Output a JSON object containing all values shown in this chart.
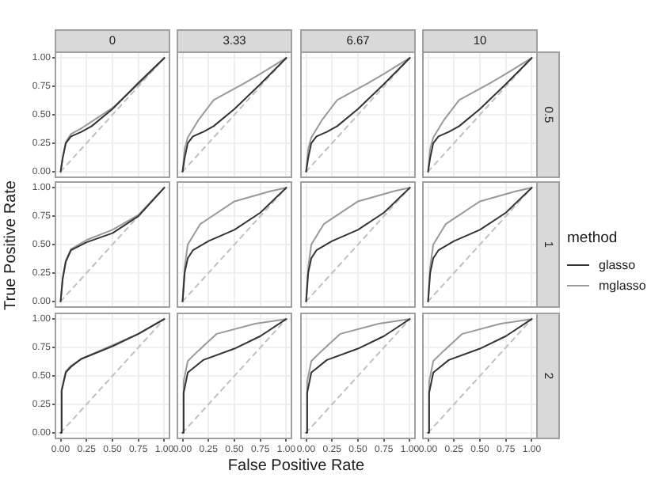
{
  "chart_data": [
    {
      "type": "line",
      "title": "0",
      "xlim": [
        -0.05,
        1.05
      ],
      "ylim": [
        -0.05,
        1.05
      ],
      "xticks": [
        0,
        0.25,
        0.5,
        0.75,
        1
      ],
      "yticks": [
        {
          "value": 0,
          "label": "0.00"
        },
        {
          "value": 0.25,
          "label": "0.25"
        },
        {
          "value": 0.5,
          "label": "0.50"
        },
        {
          "value": 0.75,
          "label": "0.75"
        },
        {
          "value": 1,
          "label": "1.00"
        }
      ],
      "tick_labels": "y",
      "grid": true,
      "series": [
        {
          "color": "#333333",
          "x": [
            0,
            0.02,
            0.05,
            0.1,
            0.2,
            0.3,
            0.5,
            0.75,
            1
          ],
          "values": [
            0,
            0.12,
            0.25,
            0.31,
            0.35,
            0.4,
            0.55,
            0.78,
            1
          ]
        },
        {
          "color": "#999999",
          "x": [
            0,
            0.02,
            0.05,
            0.1,
            0.2,
            0.3,
            0.5,
            0.75,
            1
          ],
          "values": [
            0,
            0.12,
            0.26,
            0.33,
            0.38,
            0.44,
            0.56,
            0.77,
            1
          ]
        },
        {
          "color": "#c0c0c0",
          "line_style": "dashed",
          "x": [
            0,
            1
          ],
          "values": [
            0,
            1
          ]
        }
      ]
    },
    {
      "type": "line",
      "title": "3.33",
      "xlim": [
        -0.05,
        1.05
      ],
      "ylim": [
        -0.05,
        1.05
      ],
      "xticks": [
        0,
        0.25,
        0.5,
        0.75,
        1
      ],
      "yticks": [
        0,
        0.25,
        0.5,
        0.75,
        1
      ],
      "tick_labels": false,
      "grid": true,
      "series": [
        {
          "color": "#333333",
          "x": [
            0,
            0.02,
            0.05,
            0.1,
            0.2,
            0.3,
            0.5,
            0.75,
            1
          ],
          "values": [
            0,
            0.12,
            0.25,
            0.31,
            0.35,
            0.4,
            0.55,
            0.77,
            1
          ]
        },
        {
          "color": "#999999",
          "x": [
            0,
            0.02,
            0.05,
            0.15,
            0.3,
            0.6,
            0.75,
            1
          ],
          "values": [
            0,
            0.2,
            0.3,
            0.45,
            0.63,
            0.78,
            0.86,
            1
          ]
        },
        {
          "color": "#c0c0c0",
          "line_style": "dashed",
          "x": [
            0,
            1
          ],
          "values": [
            0,
            1
          ]
        }
      ]
    },
    {
      "type": "line",
      "title": "6.67",
      "xlim": [
        -0.05,
        1.05
      ],
      "ylim": [
        -0.05,
        1.05
      ],
      "xticks": [
        0,
        0.25,
        0.5,
        0.75,
        1
      ],
      "yticks": [
        0,
        0.25,
        0.5,
        0.75,
        1
      ],
      "tick_labels": false,
      "grid": true,
      "series": [
        {
          "color": "#333333",
          "x": [
            0,
            0.02,
            0.05,
            0.1,
            0.2,
            0.3,
            0.5,
            0.75,
            1
          ],
          "values": [
            0,
            0.12,
            0.25,
            0.31,
            0.35,
            0.4,
            0.55,
            0.77,
            1
          ]
        },
        {
          "color": "#999999",
          "x": [
            0,
            0.02,
            0.05,
            0.15,
            0.3,
            0.6,
            0.75,
            1
          ],
          "values": [
            0,
            0.2,
            0.3,
            0.45,
            0.63,
            0.78,
            0.86,
            1
          ]
        },
        {
          "color": "#c0c0c0",
          "line_style": "dashed",
          "x": [
            0,
            1
          ],
          "values": [
            0,
            1
          ]
        }
      ]
    },
    {
      "type": "line",
      "title": "10",
      "y2label": "0.5",
      "xlim": [
        -0.05,
        1.05
      ],
      "ylim": [
        -0.05,
        1.05
      ],
      "xticks": [
        0,
        0.25,
        0.5,
        0.75,
        1
      ],
      "yticks": [
        0,
        0.25,
        0.5,
        0.75,
        1
      ],
      "tick_labels": false,
      "grid": true,
      "series": [
        {
          "color": "#333333",
          "x": [
            0,
            0.02,
            0.05,
            0.1,
            0.2,
            0.3,
            0.5,
            0.75,
            1
          ],
          "values": [
            0,
            0.12,
            0.25,
            0.31,
            0.35,
            0.4,
            0.55,
            0.77,
            1
          ]
        },
        {
          "color": "#999999",
          "x": [
            0,
            0.02,
            0.05,
            0.15,
            0.3,
            0.6,
            0.75,
            1
          ],
          "values": [
            0,
            0.2,
            0.3,
            0.45,
            0.63,
            0.78,
            0.86,
            1
          ]
        },
        {
          "color": "#c0c0c0",
          "line_style": "dashed",
          "x": [
            0,
            1
          ],
          "values": [
            0,
            1
          ]
        }
      ]
    },
    {
      "type": "line",
      "ylabel": "True Positive Rate",
      "xlim": [
        -0.05,
        1.05
      ],
      "ylim": [
        -0.05,
        1.05
      ],
      "xticks": [
        0,
        0.25,
        0.5,
        0.75,
        1
      ],
      "yticks": [
        {
          "value": 0,
          "label": "0.00"
        },
        {
          "value": 0.25,
          "label": "0.25"
        },
        {
          "value": 0.5,
          "label": "0.50"
        },
        {
          "value": 0.75,
          "label": "0.75"
        },
        {
          "value": 1,
          "label": "1.00"
        }
      ],
      "tick_labels": "y",
      "grid": true,
      "series": [
        {
          "color": "#333333",
          "x": [
            0,
            0.02,
            0.05,
            0.1,
            0.25,
            0.5,
            0.75,
            1
          ],
          "values": [
            0,
            0.2,
            0.35,
            0.45,
            0.52,
            0.6,
            0.75,
            1
          ]
        },
        {
          "color": "#999999",
          "x": [
            0,
            0.02,
            0.05,
            0.1,
            0.25,
            0.5,
            0.75,
            1
          ],
          "values": [
            0,
            0.2,
            0.36,
            0.46,
            0.54,
            0.63,
            0.76,
            1
          ]
        },
        {
          "color": "#c0c0c0",
          "line_style": "dashed",
          "x": [
            0,
            1
          ],
          "values": [
            0,
            1
          ]
        }
      ]
    },
    {
      "type": "line",
      "xlim": [
        -0.05,
        1.05
      ],
      "ylim": [
        -0.05,
        1.05
      ],
      "xticks": [
        0,
        0.25,
        0.5,
        0.75,
        1
      ],
      "yticks": [
        0,
        0.25,
        0.5,
        0.75,
        1
      ],
      "tick_labels": false,
      "grid": true,
      "series": [
        {
          "color": "#333333",
          "x": [
            0,
            0.02,
            0.05,
            0.1,
            0.25,
            0.5,
            0.75,
            1
          ],
          "values": [
            0,
            0.25,
            0.38,
            0.45,
            0.53,
            0.63,
            0.78,
            1
          ]
        },
        {
          "color": "#999999",
          "x": [
            0,
            0.02,
            0.05,
            0.17,
            0.5,
            0.85,
            1
          ],
          "values": [
            0,
            0.3,
            0.5,
            0.68,
            0.88,
            0.97,
            1
          ]
        },
        {
          "color": "#c0c0c0",
          "line_style": "dashed",
          "x": [
            0,
            1
          ],
          "values": [
            0,
            1
          ]
        }
      ]
    },
    {
      "type": "line",
      "xlim": [
        -0.05,
        1.05
      ],
      "ylim": [
        -0.05,
        1.05
      ],
      "xticks": [
        0,
        0.25,
        0.5,
        0.75,
        1
      ],
      "yticks": [
        0,
        0.25,
        0.5,
        0.75,
        1
      ],
      "tick_labels": false,
      "grid": true,
      "series": [
        {
          "color": "#333333",
          "x": [
            0,
            0.02,
            0.05,
            0.1,
            0.25,
            0.5,
            0.75,
            1
          ],
          "values": [
            0,
            0.25,
            0.38,
            0.45,
            0.53,
            0.63,
            0.78,
            1
          ]
        },
        {
          "color": "#999999",
          "x": [
            0,
            0.02,
            0.05,
            0.17,
            0.5,
            0.85,
            1
          ],
          "values": [
            0,
            0.3,
            0.5,
            0.68,
            0.88,
            0.97,
            1
          ]
        },
        {
          "color": "#c0c0c0",
          "line_style": "dashed",
          "x": [
            0,
            1
          ],
          "values": [
            0,
            1
          ]
        }
      ]
    },
    {
      "type": "line",
      "y2label": "1",
      "legend": "right",
      "legend_title": "method",
      "xlim": [
        -0.05,
        1.05
      ],
      "ylim": [
        -0.05,
        1.05
      ],
      "xticks": [
        0,
        0.25,
        0.5,
        0.75,
        1
      ],
      "yticks": [
        0,
        0.25,
        0.5,
        0.75,
        1
      ],
      "tick_labels": false,
      "grid": true,
      "series": [
        {
          "name": "glasso",
          "color": "#333333",
          "x": [
            0,
            0.02,
            0.05,
            0.1,
            0.25,
            0.5,
            0.75,
            1
          ],
          "values": [
            0,
            0.25,
            0.38,
            0.45,
            0.53,
            0.63,
            0.78,
            1
          ]
        },
        {
          "name": "mglasso",
          "color": "#999999",
          "x": [
            0,
            0.02,
            0.05,
            0.17,
            0.5,
            0.85,
            1
          ],
          "values": [
            0,
            0.3,
            0.5,
            0.68,
            0.88,
            0.97,
            1
          ]
        },
        {
          "color": "#c0c0c0",
          "line_style": "dashed",
          "x": [
            0,
            1
          ],
          "values": [
            0,
            1
          ]
        }
      ]
    },
    {
      "type": "line",
      "xlim": [
        -0.05,
        1.05
      ],
      "ylim": [
        -0.05,
        1.05
      ],
      "xticks": [
        {
          "value": 0,
          "label": "0.00"
        },
        {
          "value": 0.25,
          "label": "0.25"
        },
        {
          "value": 0.5,
          "label": "0.50"
        },
        {
          "value": 0.75,
          "label": "0.75"
        },
        {
          "value": 1,
          "label": "1.00"
        }
      ],
      "yticks": [
        {
          "value": 0,
          "label": "0.00"
        },
        {
          "value": 0.25,
          "label": "0.25"
        },
        {
          "value": 0.5,
          "label": "0.50"
        },
        {
          "value": 0.75,
          "label": "0.75"
        },
        {
          "value": 1,
          "label": "1.00"
        }
      ],
      "grid": true,
      "series": [
        {
          "color": "#333333",
          "x": [
            0,
            0.01,
            0.05,
            0.1,
            0.2,
            0.5,
            0.75,
            1
          ],
          "values": [
            0,
            0.37,
            0.53,
            0.58,
            0.65,
            0.76,
            0.87,
            1
          ]
        },
        {
          "color": "#999999",
          "x": [
            0,
            0.01,
            0.05,
            0.1,
            0.2,
            0.5,
            0.75,
            1
          ],
          "values": [
            0,
            0.38,
            0.54,
            0.59,
            0.65,
            0.77,
            0.87,
            1
          ]
        },
        {
          "color": "#c0c0c0",
          "line_style": "dashed",
          "x": [
            0,
            1
          ],
          "values": [
            0,
            1
          ]
        }
      ]
    },
    {
      "type": "line",
      "xlabel": "False Positive Rate",
      "xlim": [
        -0.05,
        1.05
      ],
      "ylim": [
        -0.05,
        1.05
      ],
      "xticks": [
        {
          "value": 0,
          "label": "0.00"
        },
        {
          "value": 0.25,
          "label": "0.25"
        },
        {
          "value": 0.5,
          "label": "0.50"
        },
        {
          "value": 0.75,
          "label": "0.75"
        },
        {
          "value": 1,
          "label": "1.00"
        }
      ],
      "yticks": [
        0,
        0.25,
        0.5,
        0.75,
        1
      ],
      "tick_labels": "x",
      "grid": true,
      "series": [
        {
          "color": "#333333",
          "x": [
            0,
            0.01,
            0.05,
            0.2,
            0.5,
            0.75,
            1
          ],
          "values": [
            0,
            0.35,
            0.53,
            0.64,
            0.74,
            0.85,
            1
          ]
        },
        {
          "color": "#999999",
          "x": [
            0,
            0.01,
            0.05,
            0.15,
            0.33,
            0.7,
            1
          ],
          "values": [
            0,
            0.45,
            0.63,
            0.72,
            0.87,
            0.96,
            1
          ]
        },
        {
          "color": "#c0c0c0",
          "line_style": "dashed",
          "x": [
            0,
            1
          ],
          "values": [
            0,
            1
          ]
        }
      ]
    },
    {
      "type": "line",
      "xlim": [
        -0.05,
        1.05
      ],
      "ylim": [
        -0.05,
        1.05
      ],
      "xticks": [
        {
          "value": 0,
          "label": "0.00"
        },
        {
          "value": 0.25,
          "label": "0.25"
        },
        {
          "value": 0.5,
          "label": "0.50"
        },
        {
          "value": 0.75,
          "label": "0.75"
        },
        {
          "value": 1,
          "label": "1.00"
        }
      ],
      "yticks": [
        0,
        0.25,
        0.5,
        0.75,
        1
      ],
      "tick_labels": "x",
      "grid": true,
      "series": [
        {
          "color": "#333333",
          "x": [
            0,
            0.01,
            0.05,
            0.2,
            0.5,
            0.75,
            1
          ],
          "values": [
            0,
            0.35,
            0.53,
            0.64,
            0.74,
            0.85,
            1
          ]
        },
        {
          "color": "#999999",
          "x": [
            0,
            0.01,
            0.05,
            0.15,
            0.33,
            0.7,
            1
          ],
          "values": [
            0,
            0.45,
            0.63,
            0.72,
            0.87,
            0.96,
            1
          ]
        },
        {
          "color": "#c0c0c0",
          "line_style": "dashed",
          "x": [
            0,
            1
          ],
          "values": [
            0,
            1
          ]
        }
      ]
    },
    {
      "type": "line",
      "y2label": "2",
      "xlim": [
        -0.05,
        1.05
      ],
      "ylim": [
        -0.05,
        1.05
      ],
      "xticks": [
        {
          "value": 0,
          "label": "0.00"
        },
        {
          "value": 0.25,
          "label": "0.25"
        },
        {
          "value": 0.5,
          "label": "0.50"
        },
        {
          "value": 0.75,
          "label": "0.75"
        },
        {
          "value": 1,
          "label": "1.00"
        }
      ],
      "yticks": [
        0,
        0.25,
        0.5,
        0.75,
        1
      ],
      "tick_labels": "x",
      "grid": true,
      "series": [
        {
          "color": "#333333",
          "x": [
            0,
            0.01,
            0.05,
            0.2,
            0.5,
            0.75,
            1
          ],
          "values": [
            0,
            0.35,
            0.53,
            0.64,
            0.74,
            0.85,
            1
          ]
        },
        {
          "color": "#999999",
          "x": [
            0,
            0.01,
            0.05,
            0.15,
            0.33,
            0.7,
            1
          ],
          "values": [
            0,
            0.45,
            0.63,
            0.72,
            0.87,
            0.96,
            1
          ]
        },
        {
          "color": "#c0c0c0",
          "line_style": "dashed",
          "x": [
            0,
            1
          ],
          "values": [
            0,
            1
          ]
        }
      ]
    }
  ]
}
